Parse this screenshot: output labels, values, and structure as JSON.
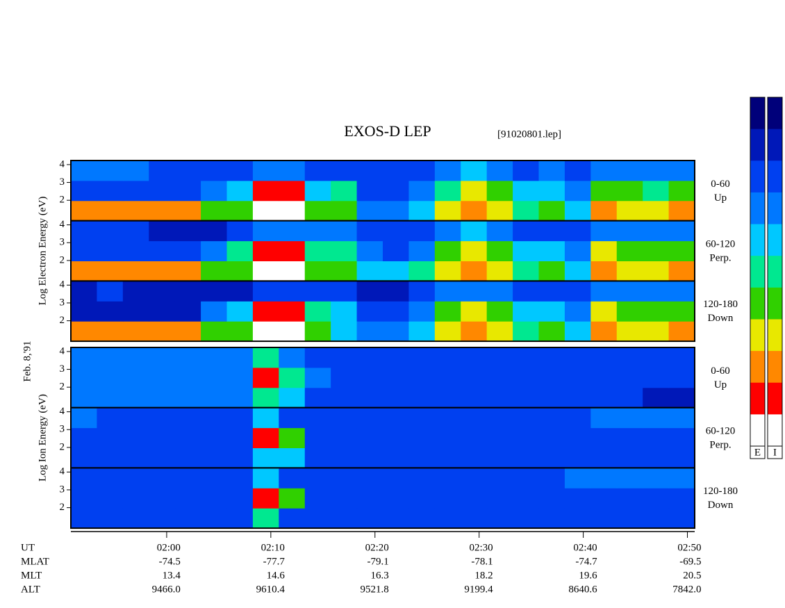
{
  "chart_data": {
    "type": "spectrogram",
    "title": "EXOS-D LEP",
    "subtitle": "[91020801.lep]",
    "date_label": "Feb. 8,'91",
    "xlim": [
      110.8,
      170.7
    ],
    "xticks": [
      {
        "value": 120,
        "label": "02:00"
      },
      {
        "value": 130,
        "label": "02:10"
      },
      {
        "value": 140,
        "label": "02:20"
      },
      {
        "value": 150,
        "label": "02:30"
      },
      {
        "value": 160,
        "label": "02:40"
      },
      {
        "value": 170,
        "label": "02:50"
      }
    ],
    "x_label": "UT",
    "ylim": [
      0.85,
      4.23
    ],
    "yticks": [
      2,
      3,
      4
    ],
    "colorscale": [
      "#00007a",
      "#0018b8",
      "#0040f0",
      "#0078ff",
      "#00c8ff",
      "#00e890",
      "#30d000",
      "#e8e800",
      "#ff8800",
      "#ff0000",
      "#ffffff"
    ],
    "colorbar_labels": [
      "E",
      "I"
    ],
    "groups": [
      {
        "ylabel": "Log Electron Energy (eV)",
        "panels": [
          {
            "label": [
              "0-60",
              "Up"
            ],
            "values": [
              [
                8,
                8,
                8,
                8,
                8,
                6,
                6,
                10,
                10,
                6,
                6,
                3,
                3,
                4,
                7,
                8,
                7,
                5,
                6,
                4,
                8,
                7,
                7,
                8
              ],
              [
                2,
                2,
                2,
                2,
                2,
                3,
                4,
                9,
                9,
                4,
                5,
                2,
                2,
                3,
                5,
                7,
                6,
                4,
                4,
                3,
                6,
                6,
                5,
                6
              ],
              [
                3,
                3,
                3,
                2,
                2,
                2,
                2,
                3,
                3,
                2,
                2,
                2,
                2,
                2,
                3,
                4,
                3,
                2,
                3,
                2,
                3,
                3,
                3,
                3
              ]
            ]
          },
          {
            "label": [
              "60-120",
              "Perp."
            ],
            "values": [
              [
                8,
                8,
                8,
                8,
                8,
                6,
                6,
                10,
                10,
                6,
                6,
                4,
                4,
                5,
                7,
                8,
                7,
                5,
                6,
                4,
                8,
                7,
                7,
                8
              ],
              [
                2,
                2,
                2,
                2,
                2,
                3,
                5,
                9,
                9,
                5,
                5,
                3,
                2,
                3,
                6,
                7,
                6,
                4,
                4,
                3,
                7,
                6,
                6,
                6
              ],
              [
                2,
                2,
                2,
                1,
                1,
                1,
                2,
                3,
                3,
                3,
                3,
                2,
                2,
                2,
                3,
                4,
                3,
                2,
                2,
                2,
                3,
                3,
                3,
                3
              ]
            ]
          },
          {
            "label": [
              "120-180",
              "Down"
            ],
            "values": [
              [
                8,
                8,
                8,
                8,
                8,
                6,
                6,
                10,
                10,
                6,
                4,
                3,
                3,
                4,
                7,
                8,
                7,
                5,
                6,
                4,
                8,
                7,
                7,
                8
              ],
              [
                1,
                1,
                1,
                1,
                1,
                3,
                4,
                9,
                9,
                5,
                4,
                2,
                2,
                3,
                6,
                7,
                6,
                4,
                4,
                3,
                7,
                6,
                6,
                6
              ],
              [
                1,
                2,
                1,
                1,
                1,
                1,
                1,
                2,
                2,
                2,
                2,
                1,
                1,
                2,
                3,
                3,
                3,
                2,
                2,
                2,
                3,
                3,
                3,
                3
              ]
            ]
          }
        ]
      },
      {
        "ylabel": "Log Ion Energy (eV)",
        "panels": [
          {
            "label": [
              "0-60",
              "Up"
            ],
            "values": [
              [
                3,
                3,
                3,
                3,
                3,
                3,
                3,
                5,
                4,
                2,
                2,
                2,
                2,
                2,
                2,
                2,
                2,
                2,
                2,
                2,
                2,
                2,
                1,
                1
              ],
              [
                3,
                3,
                3,
                3,
                3,
                3,
                3,
                9,
                5,
                3,
                2,
                2,
                2,
                2,
                2,
                2,
                2,
                2,
                2,
                2,
                2,
                2,
                2,
                2
              ],
              [
                3,
                3,
                3,
                3,
                3,
                3,
                3,
                5,
                3,
                2,
                2,
                2,
                2,
                2,
                2,
                2,
                2,
                2,
                2,
                2,
                2,
                2,
                2,
                2
              ]
            ]
          },
          {
            "label": [
              "60-120",
              "Perp."
            ],
            "values": [
              [
                2,
                2,
                2,
                2,
                2,
                2,
                2,
                4,
                4,
                2,
                2,
                2,
                2,
                2,
                2,
                2,
                2,
                2,
                2,
                2,
                2,
                2,
                2,
                2
              ],
              [
                2,
                2,
                2,
                2,
                2,
                2,
                2,
                9,
                6,
                2,
                2,
                2,
                2,
                2,
                2,
                2,
                2,
                2,
                2,
                2,
                2,
                2,
                2,
                2
              ],
              [
                3,
                2,
                2,
                2,
                2,
                2,
                2,
                4,
                2,
                2,
                2,
                2,
                2,
                2,
                2,
                2,
                2,
                2,
                2,
                2,
                3,
                3,
                3,
                3
              ]
            ]
          },
          {
            "label": [
              "120-180",
              "Down"
            ],
            "values": [
              [
                2,
                2,
                2,
                2,
                2,
                2,
                2,
                5,
                2,
                2,
                2,
                2,
                2,
                2,
                2,
                2,
                2,
                2,
                2,
                2,
                2,
                2,
                2,
                2
              ],
              [
                2,
                2,
                2,
                2,
                2,
                2,
                2,
                9,
                6,
                2,
                2,
                2,
                2,
                2,
                2,
                2,
                2,
                2,
                2,
                2,
                2,
                2,
                2,
                2
              ],
              [
                2,
                2,
                2,
                2,
                2,
                2,
                2,
                4,
                2,
                2,
                2,
                2,
                2,
                2,
                2,
                2,
                2,
                2,
                2,
                3,
                3,
                3,
                3,
                3
              ]
            ]
          }
        ]
      }
    ],
    "ephemeris": [
      {
        "name": "MLAT",
        "values": [
          "-74.5",
          "-77.7",
          "-79.1",
          "-78.1",
          "-74.7",
          "-69.5"
        ]
      },
      {
        "name": "MLT",
        "values": [
          "13.4",
          "14.6",
          "16.3",
          "18.2",
          "19.6",
          "20.5"
        ]
      },
      {
        "name": "ALT",
        "values": [
          "9466.0",
          "9610.4",
          "9521.8",
          "9199.4",
          "8640.6",
          "7842.0"
        ]
      }
    ]
  }
}
